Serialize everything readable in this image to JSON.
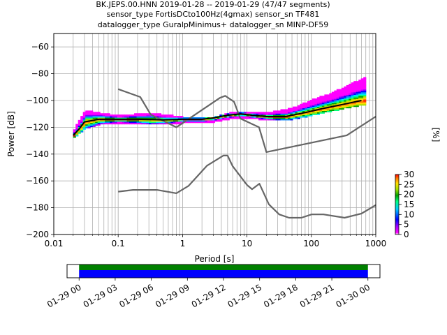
{
  "chart_data": [
    {
      "type": "heatmap",
      "title_lines": [
        "BK.JEPS.00.HNN   2019-01-28 -- 2019-01-29  (47/47 segments)",
        "sensor_type FortisDCto100Hz(4gmax) sensor_sn TF481",
        "datalogger_type GuralpMinimus+ datalogger_sn MINP-DF59"
      ],
      "xlabel": "Period [s]",
      "ylabel": "Power [dB]",
      "xscale": "log",
      "xlim": [
        0.01,
        1000
      ],
      "ylim": [
        -200,
        -50
      ],
      "xticks": [
        0.01,
        0.1,
        1,
        10,
        100,
        1000
      ],
      "xtick_labels": [
        "0.01",
        "0.1",
        "1",
        "10",
        "100",
        "1000"
      ],
      "yticks": [
        -200,
        -180,
        -160,
        -140,
        -120,
        -100,
        -80,
        -60
      ],
      "ytick_labels": [
        "−200",
        "−180",
        "−160",
        "−140",
        "−120",
        "−100",
        "−80",
        "−60"
      ],
      "grid": true,
      "colorbar": {
        "label": "[%]",
        "range": [
          0,
          30
        ],
        "ticks": [
          0,
          5,
          10,
          15,
          20,
          25,
          30
        ],
        "tick_labels": [
          "0",
          "5",
          "10",
          "15",
          "20",
          "25",
          "30"
        ]
      },
      "mode_curve": {
        "color": "#000000",
        "x": [
          0.02,
          0.025,
          0.03,
          0.05,
          0.1,
          0.2,
          0.5,
          1,
          2,
          3,
          5,
          8,
          12,
          20,
          40,
          80,
          150,
          300,
          600
        ],
        "y": [
          -126,
          -121,
          -116,
          -114,
          -114,
          -114,
          -114.5,
          -114,
          -114,
          -113,
          -111,
          -110,
          -111,
          -112,
          -112,
          -109,
          -106,
          -103,
          -100
        ]
      },
      "psd_density_envelope": {
        "x": [
          0.02,
          0.03,
          0.05,
          0.1,
          0.3,
          1,
          3,
          5,
          10,
          20,
          50,
          100,
          200,
          400,
          700
        ],
        "upper": [
          -122,
          -108,
          -110,
          -112,
          -110,
          -113,
          -113,
          -110,
          -109,
          -110,
          -106,
          -100,
          -95,
          -88,
          -83
        ],
        "lower": [
          -127,
          -120,
          -117,
          -116,
          -117,
          -116,
          -115,
          -113,
          -112,
          -114,
          -113,
          -110,
          -107,
          -104,
          -102
        ]
      },
      "noise_models": [
        {
          "color": "#666666",
          "x": [
            0.1,
            0.17,
            0.4,
            0.8,
            1.24,
            2.4,
            4.3,
            5,
            6,
            10,
            12,
            15.6,
            21.9,
            31.6,
            45,
            70,
            101,
            154,
            328,
            600,
            1000
          ],
          "y": [
            -168,
            -166.7,
            -166.7,
            -169.2,
            -163.7,
            -148.6,
            -141.1,
            -141.1,
            -149,
            -163,
            -166.2,
            -162.1,
            -177.5,
            -185,
            -187.5,
            -187.5,
            -185,
            -185,
            -187.5,
            -184.4,
            -178
          ]
        },
        {
          "color": "#666666",
          "x": [
            0.1,
            0.22,
            0.32,
            0.8,
            3.8,
            4.6,
            6.3,
            7.9,
            15.4,
            20,
            354.8,
            1000
          ],
          "y": [
            -91.5,
            -97.4,
            -110.5,
            -120,
            -98,
            -96.5,
            -101,
            -113.5,
            -120,
            -138.5,
            -126,
            -112
          ]
        }
      ]
    },
    {
      "type": "timeline",
      "xlim": [
        "2019-01-28 23:00",
        "2019-01-30 01:00"
      ],
      "xtick_labels": [
        "01-29 00",
        "01-29 03",
        "01-29 06",
        "01-29 09",
        "01-29 12",
        "01-29 15",
        "01-29 18",
        "01-29 21",
        "01-30 00"
      ],
      "bars": [
        {
          "color": "#008000",
          "start": "2019-01-29 00:00",
          "end": "2019-01-30 00:00"
        },
        {
          "color": "#0000ff",
          "start": "2019-01-29 00:00",
          "end": "2019-01-30 00:00"
        }
      ]
    }
  ]
}
